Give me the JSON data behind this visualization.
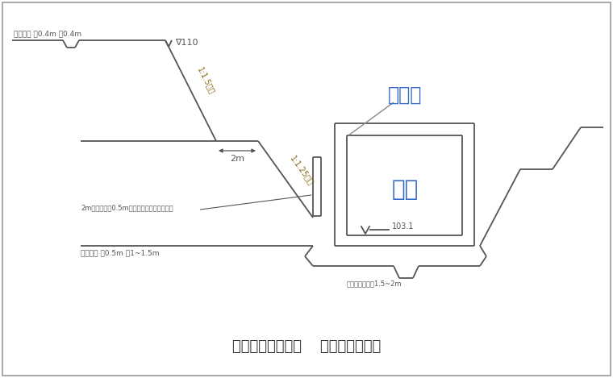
{
  "bg_color": "#ffffff",
  "line_color": "#555555",
  "title": "需要时增加松木桩    边坡加固示意图",
  "label_yinshui": "引水渠",
  "label_jikeng": "基坑",
  "label_103": "103.1",
  "label_110": "∇110",
  "label_slope1": "1:1.5坡坡",
  "label_slope2": "1:1.25坡坡",
  "label_2m": "2m",
  "label_drain1": "排水明沟 深0.4m 宽0.4m",
  "label_drain2": "排水明沟 深0.5m 宽1~1.5m",
  "label_pile": "2m长木桩间距0.5m插入边坡上用竹篾篮围拦",
  "label_support": "脚手架搭设宽度1.5~2m",
  "chinese_color": "#4a90d9",
  "slope_label_color": "#8B7355",
  "lw": 1.3
}
